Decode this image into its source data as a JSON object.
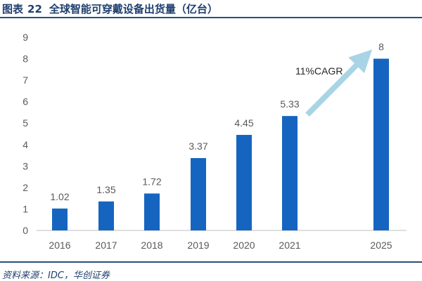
{
  "figure": {
    "label": "图表",
    "number": "22",
    "title": "全球智能可穿戴设备出货量（亿台）"
  },
  "source": "资料来源：IDC，华创证券",
  "annotation": "11%CAGR",
  "colors": {
    "bar": "#1565c0",
    "arrow": "#a9d4e6",
    "axis_text": "#595959",
    "title": "#1f3f6e"
  },
  "chart_data": {
    "type": "bar",
    "title": "全球智能可穿戴设备出货量（亿台）",
    "categories": [
      "2016",
      "2017",
      "2018",
      "2019",
      "2020",
      "2021",
      "2025"
    ],
    "values": [
      1.02,
      1.35,
      1.72,
      3.37,
      4.45,
      5.33,
      8
    ],
    "value_labels": [
      "1.02",
      "1.35",
      "1.72",
      "3.37",
      "4.45",
      "5.33",
      "8"
    ],
    "y_ticks": [
      "0",
      "1",
      "2",
      "3",
      "4",
      "5",
      "6",
      "7",
      "8",
      "9"
    ],
    "ylim": [
      0,
      9
    ],
    "xlabel": "",
    "ylabel": "",
    "grid": false,
    "legend": "none"
  }
}
